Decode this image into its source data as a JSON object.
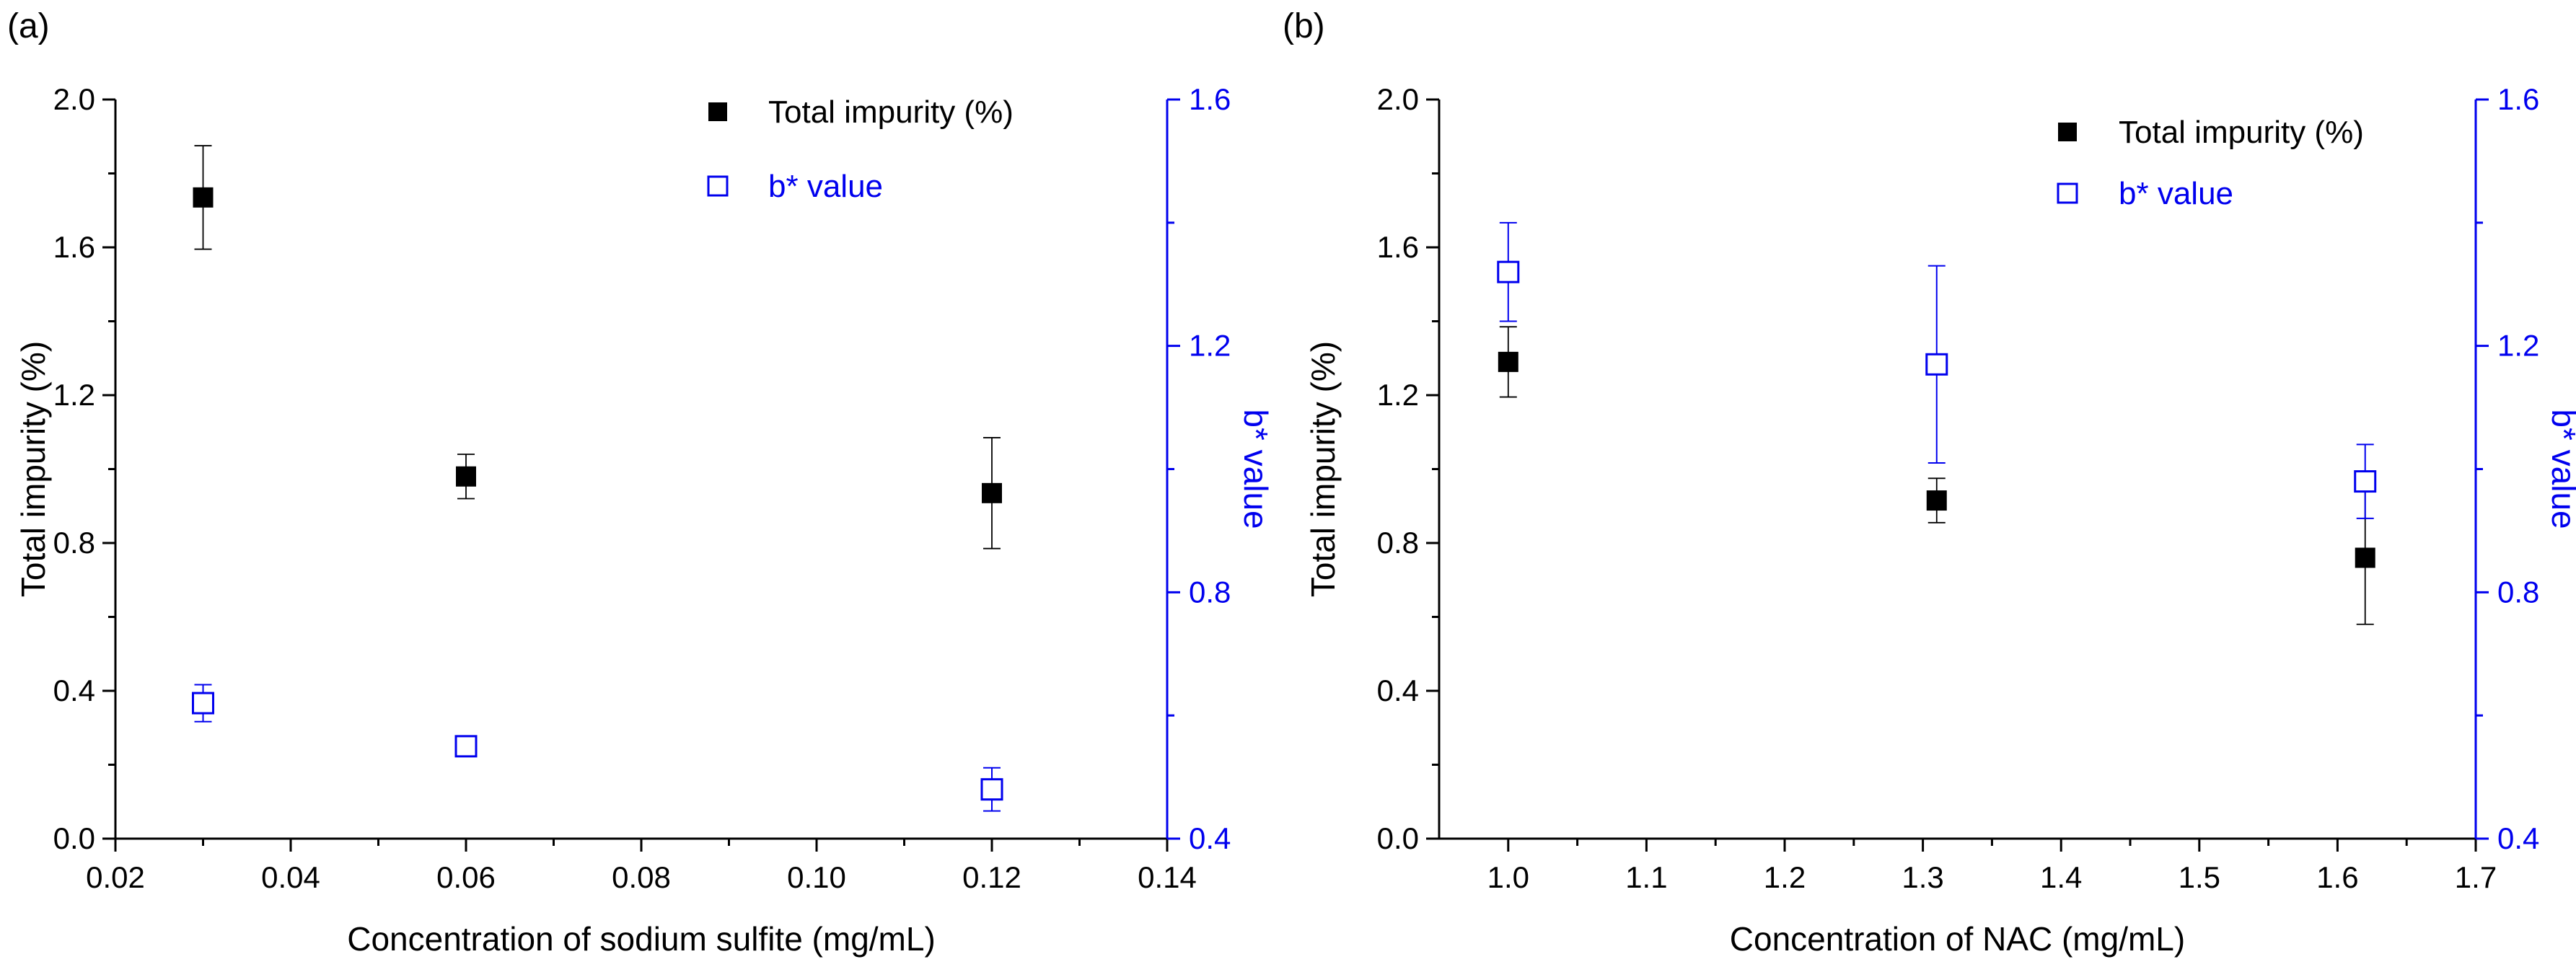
{
  "chart_data": [
    {
      "type": "scatter",
      "panel_label": "(a)",
      "xlabel": "Concentration of sodium sulfite (mg/mL)",
      "ylabel": "Total impurity (%)",
      "y2label": "b* value",
      "xlim": [
        0.02,
        0.14
      ],
      "xticks": [
        "0.02",
        "0.04",
        "0.06",
        "0.08",
        "0.10",
        "0.12",
        "0.14"
      ],
      "ylim": [
        0.0,
        2.0
      ],
      "yticks": [
        "0.0",
        "0.4",
        "0.8",
        "1.2",
        "1.6",
        "2.0"
      ],
      "y2lim": [
        0.4,
        1.6
      ],
      "y2ticks": [
        "0.4",
        "0.8",
        "1.2",
        "1.6"
      ],
      "legend_position": "top-right",
      "colors": {
        "primary": "#000000",
        "secondary": "#0000ee"
      },
      "series": [
        {
          "name": "Total impurity (%)",
          "axis": "left",
          "marker": "filled-square",
          "x": [
            0.03,
            0.06,
            0.12
          ],
          "y": [
            1.735,
            0.98,
            0.935
          ],
          "err": [
            0.14,
            0.06,
            0.15
          ]
        },
        {
          "name": "b* value",
          "axis": "right",
          "marker": "open-square",
          "x": [
            0.03,
            0.06,
            0.12
          ],
          "y": [
            0.62,
            0.55,
            0.48
          ],
          "err": [
            0.03,
            0.015,
            0.035
          ]
        }
      ]
    },
    {
      "type": "scatter",
      "panel_label": "(b)",
      "xlabel": "Concentration of NAC (mg/mL)",
      "ylabel": "Total impurity (%)",
      "y2label": "b* value",
      "xlim": [
        0.95,
        1.7
      ],
      "xticks": [
        "1.0",
        "1.1",
        "1.2",
        "1.3",
        "1.4",
        "1.5",
        "1.6",
        "1.7"
      ],
      "ylim": [
        0.0,
        2.0
      ],
      "yticks": [
        "0.0",
        "0.4",
        "0.8",
        "1.2",
        "1.6",
        "2.0"
      ],
      "y2lim": [
        0.4,
        1.6
      ],
      "y2ticks": [
        "0.4",
        "0.8",
        "1.2",
        "1.6"
      ],
      "legend_position": "top-right",
      "colors": {
        "primary": "#000000",
        "secondary": "#0000ee"
      },
      "series": [
        {
          "name": "Total impurity (%)",
          "axis": "left",
          "marker": "filled-square",
          "x": [
            1.0,
            1.31,
            1.62
          ],
          "y": [
            1.29,
            0.915,
            0.76
          ],
          "err": [
            0.095,
            0.06,
            0.18
          ]
        },
        {
          "name": "b* value",
          "axis": "right",
          "marker": "open-square",
          "x": [
            1.0,
            1.31,
            1.62
          ],
          "y": [
            1.32,
            1.17,
            0.98
          ],
          "err": [
            0.08,
            0.16,
            0.06
          ]
        }
      ]
    }
  ]
}
